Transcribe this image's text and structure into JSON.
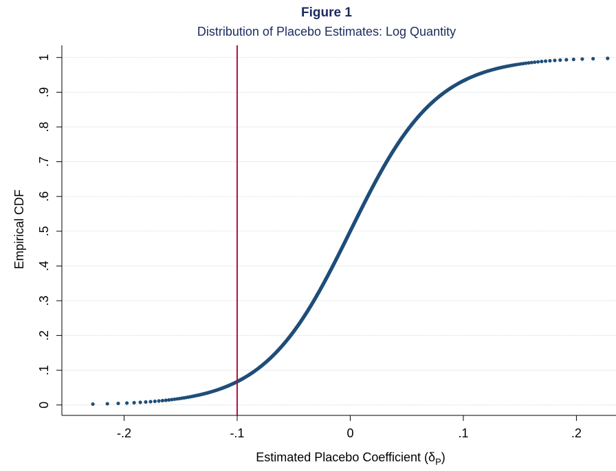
{
  "chart_data": {
    "type": "scatter",
    "title": "Figure 1",
    "subtitle": "Distribution of Placebo Estimates: Log Quantity",
    "xlabel": "Estimated Placebo Coefficient (δ",
    "xlabel_sub": "P",
    "xlabel_close": ")",
    "ylabel": "Empirical CDF",
    "xlim": [
      -0.255,
      0.235
    ],
    "ylim": [
      -0.03,
      1.035
    ],
    "x_ticks": [
      -0.2,
      -0.1,
      0,
      0.1,
      0.2
    ],
    "x_tick_labels": [
      "-.2",
      "-.1",
      "0",
      ".1",
      ".2"
    ],
    "y_ticks": [
      0,
      0.1,
      0.2,
      0.3,
      0.4,
      0.5,
      0.6,
      0.7,
      0.8,
      0.9,
      1
    ],
    "y_tick_labels": [
      "0",
      ".1",
      ".2",
      ".3",
      ".4",
      ".5",
      ".6",
      ".7",
      ".8",
      ".9",
      "1"
    ],
    "grid": true,
    "reference_line": {
      "axis": "x",
      "value": -0.1,
      "color": "#b0103a"
    },
    "series": [
      {
        "color": "#1f4e79",
        "distribution": "logistic",
        "location": 0.0,
        "scale": 0.038,
        "n": 1000,
        "x_min": -0.245,
        "x_max": 0.232
      }
    ],
    "colors": {
      "points": "#1f4e79",
      "reference_line": "#b0103a",
      "grid": "#c8d4d4",
      "title": "#1a2a5e"
    }
  }
}
